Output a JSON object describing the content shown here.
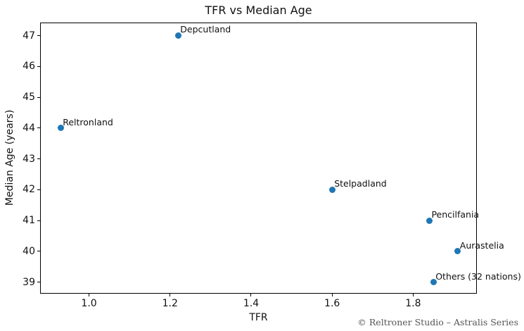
{
  "footer": "© Reltroner Studio – Astralis Series",
  "chart_data": {
    "type": "scatter",
    "title": "TFR vs Median Age",
    "xlabel": "TFR",
    "ylabel": "Median Age (years)",
    "xlim": [
      0.881,
      1.959
    ],
    "ylim": [
      38.6,
      47.4
    ],
    "xticks": [
      1.0,
      1.2,
      1.4,
      1.6,
      1.8
    ],
    "yticks": [
      39,
      40,
      41,
      42,
      43,
      44,
      45,
      46,
      47
    ],
    "grid": false,
    "legend": "none",
    "marker_color": "#1f77b4",
    "points": [
      {
        "label": "Reltronland",
        "x": 0.93,
        "y": 44
      },
      {
        "label": "Depcutland",
        "x": 1.22,
        "y": 47
      },
      {
        "label": "Stelpadland",
        "x": 1.6,
        "y": 42
      },
      {
        "label": "Pencilfania",
        "x": 1.84,
        "y": 41
      },
      {
        "label": "Aurastelia",
        "x": 1.91,
        "y": 40
      },
      {
        "label": "Others (32 nations)",
        "x": 1.85,
        "y": 39
      }
    ]
  }
}
